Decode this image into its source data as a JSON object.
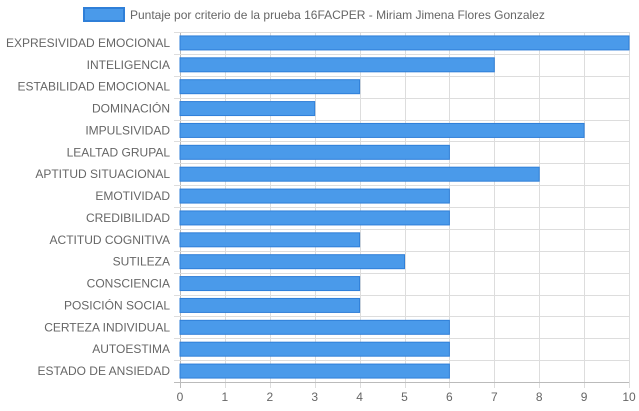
{
  "chart_data": {
    "type": "bar",
    "orientation": "horizontal",
    "title": "",
    "xlabel": "",
    "ylabel": "",
    "categories": [
      "EXPRESIVIDAD EMOCIONAL",
      "INTELIGENCIA",
      "ESTABILIDAD EMOCIONAL",
      "DOMINACIÓN",
      "IMPULSIVIDAD",
      "LEALTAD GRUPAL",
      "APTITUD SITUACIONAL",
      "EMOTIVIDAD",
      "CREDIBILIDAD",
      "ACTITUD COGNITIVA",
      "SUTILEZA",
      "CONSCIENCIA",
      "POSICIÓN SOCIAL",
      "CERTEZA INDIVIDUAL",
      "AUTOESTIMA",
      "ESTADO DE ANSIEDAD"
    ],
    "series": [
      {
        "name": "Puntaje por criterio de la prueba 16FACPER - Miriam Jimena Flores Gonzalez",
        "values": [
          10,
          7,
          4,
          3,
          9,
          6,
          8,
          6,
          6,
          4,
          5,
          4,
          4,
          6,
          6,
          6
        ]
      }
    ],
    "xlim": [
      0,
      10
    ],
    "x_ticks": [
      "0",
      "1",
      "2",
      "3",
      "4",
      "5",
      "6",
      "7",
      "8",
      "9",
      "10"
    ],
    "grid": true,
    "legend_position": "top",
    "colors": {
      "bar_fill": "#4a9aea",
      "bar_stroke": "#2f7fd8",
      "grid": "#dddddd",
      "axis": "#bbbbbb",
      "text": "#666666"
    }
  }
}
